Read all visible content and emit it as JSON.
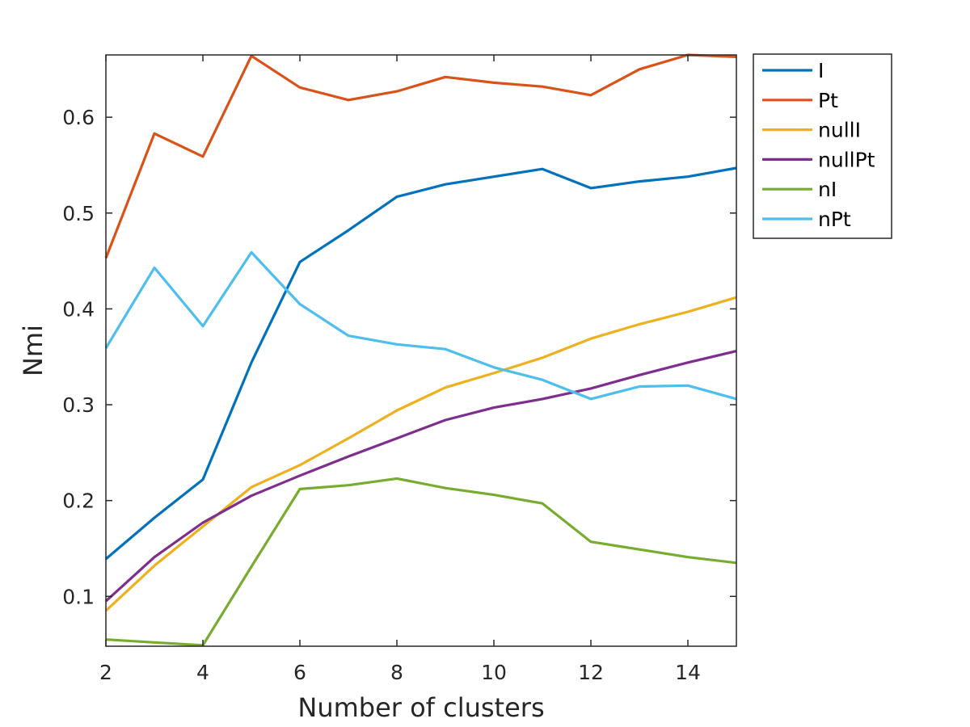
{
  "chart_data": {
    "type": "line",
    "title": "",
    "xlabel": "Number of clusters",
    "ylabel": "Nmi",
    "xlim": [
      2,
      15
    ],
    "ylim": [
      0.048,
      0.665
    ],
    "xticks": [
      2,
      4,
      6,
      8,
      10,
      12,
      14
    ],
    "yticks": [
      0.1,
      0.2,
      0.3,
      0.4,
      0.5,
      0.6
    ],
    "x": [
      2,
      3,
      4,
      5,
      6,
      7,
      8,
      9,
      10,
      11,
      12,
      13,
      14,
      15
    ],
    "grid": false,
    "legend_position": "outside-top-right",
    "series": [
      {
        "name": "I",
        "color": "#0072BD",
        "values": [
          0.139,
          0.182,
          0.222,
          0.344,
          0.449,
          0.482,
          0.517,
          0.53,
          0.538,
          0.546,
          0.526,
          0.533,
          0.538,
          0.547
        ]
      },
      {
        "name": "Pt",
        "color": "#D95319",
        "values": [
          0.453,
          0.583,
          0.559,
          0.664,
          0.631,
          0.618,
          0.627,
          0.642,
          0.636,
          0.632,
          0.623,
          0.65,
          0.665,
          0.663
        ]
      },
      {
        "name": "nullI",
        "color": "#EDB120",
        "values": [
          0.085,
          0.132,
          0.173,
          0.214,
          0.237,
          0.265,
          0.294,
          0.318,
          0.333,
          0.349,
          0.369,
          0.384,
          0.397,
          0.412
        ]
      },
      {
        "name": "nullPt",
        "color": "#7E2F8E",
        "values": [
          0.095,
          0.141,
          0.177,
          0.205,
          0.226,
          0.246,
          0.265,
          0.284,
          0.297,
          0.306,
          0.317,
          0.331,
          0.344,
          0.356
        ]
      },
      {
        "name": "nI",
        "color": "#77AC30",
        "values": [
          0.055,
          0.052,
          0.049,
          0.131,
          0.212,
          0.216,
          0.223,
          0.213,
          0.206,
          0.197,
          0.157,
          0.149,
          0.141,
          0.135
        ]
      },
      {
        "name": "nPt",
        "color": "#4DBEEE",
        "values": [
          0.359,
          0.443,
          0.382,
          0.459,
          0.405,
          0.372,
          0.363,
          0.358,
          0.339,
          0.326,
          0.306,
          0.319,
          0.32,
          0.306
        ]
      }
    ]
  }
}
